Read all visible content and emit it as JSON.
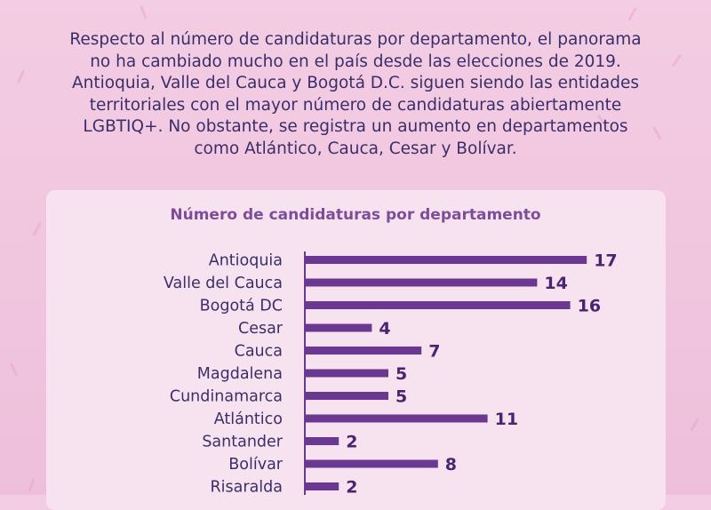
{
  "intro_text": "Respecto al número de candidaturas por departamento, el panorama no ha cambiado mucho en el país desde las elecciones de 2019. Antioquia, Valle del Cauca y Bogotá D.C. siguen siendo las entidades territoriales con el mayor número de candidaturas abiertamente LGBTIQ+. No obstante, se registra un aumento en departamentos como Atlántico, Cauca, Cesar y Bolívar.",
  "colors": {
    "background": "#f0c6e0",
    "card": "#f7e3f0",
    "bar": "#6a3891",
    "text": "#3a2e6a",
    "title": "#7d4d9a"
  },
  "chart_data": {
    "type": "bar",
    "orientation": "horizontal",
    "title": "Número de candidaturas por departamento",
    "categories": [
      "Antioquia",
      "Valle del Cauca",
      "Bogotá DC",
      "Cesar",
      "Cauca",
      "Magdalena",
      "Cundinamarca",
      "Atlántico",
      "Santander",
      "Bolívar",
      "Risaralda"
    ],
    "values": [
      17,
      14,
      16,
      4,
      7,
      5,
      5,
      11,
      2,
      8,
      2
    ],
    "data_labels": true,
    "xlim": [
      0,
      17
    ],
    "grid": false
  }
}
